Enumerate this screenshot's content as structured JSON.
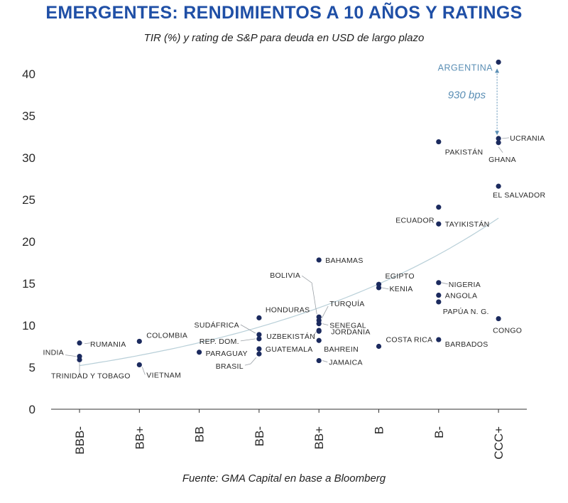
{
  "colors": {
    "title": "#1f4fa6",
    "marker": "#1b2a5e",
    "axis": "#333333",
    "trend": "#b8cfd8",
    "highlight": "#5b8fb5",
    "text": "#2a2a2a"
  },
  "chart_data": {
    "type": "scatter",
    "title": "EMERGENTES: RENDIMIENTOS A 10 AÑOS Y RATINGS",
    "subtitle": "TIR (%) y rating de S&P para deuda en USD de largo plazo",
    "source": "Fuente: GMA Capital en base a Bloomberg",
    "xlabel": "",
    "ylabel": "",
    "categories": [
      "BBB-",
      "BB+",
      "BB",
      "BB-",
      "BB+",
      "B",
      "B-",
      "CCC+"
    ],
    "ylim": [
      0,
      42
    ],
    "yticks": [
      0,
      5,
      10,
      15,
      20,
      25,
      30,
      35,
      40
    ],
    "points": [
      {
        "country": "RUMANIA",
        "category_index": 0,
        "y": 7.9
      },
      {
        "country": "INDIA",
        "category_index": 0,
        "y": 6.3
      },
      {
        "country": "TRINIDAD Y TOBAGO",
        "category_index": 0,
        "y": 5.9
      },
      {
        "country": "COLOMBIA",
        "category_index": 1,
        "y": 8.1
      },
      {
        "country": "VIETNAM",
        "category_index": 1,
        "y": 5.3
      },
      {
        "country": "PARAGUAY",
        "category_index": 2,
        "y": 6.8
      },
      {
        "country": "HONDURAS",
        "category_index": 3,
        "y": 10.9
      },
      {
        "country": "SUDÁFRICA",
        "category_index": 3,
        "y": 8.9
      },
      {
        "country": "REP. DOM.",
        "category_index": 3,
        "y": 8.4
      },
      {
        "country": "GUATEMALA",
        "category_index": 3,
        "y": 7.2
      },
      {
        "country": "BRASIL",
        "category_index": 3,
        "y": 6.6
      },
      {
        "country": "BAHAMAS",
        "category_index": 4,
        "y": 17.8
      },
      {
        "country": "BOLIVIA",
        "category_index": 4,
        "y": 11.0
      },
      {
        "country": "TURQUÍA",
        "category_index": 4,
        "y": 10.6
      },
      {
        "country": "SENEGAL",
        "category_index": 4,
        "y": 10.2
      },
      {
        "country": "UZBEKISTÁN",
        "category_index": 4,
        "y": 9.4
      },
      {
        "country": "JORDANIA",
        "category_index": 4,
        "y": 9.3
      },
      {
        "country": "BAHREIN",
        "category_index": 4,
        "y": 8.2
      },
      {
        "country": "JAMAICA",
        "category_index": 4,
        "y": 5.8
      },
      {
        "country": "EGIPTO",
        "category_index": 5,
        "y": 14.9
      },
      {
        "country": "KENIA",
        "category_index": 5,
        "y": 14.5
      },
      {
        "country": "COSTA RICA",
        "category_index": 5,
        "y": 7.5
      },
      {
        "country": "PAKISTÁN",
        "category_index": 6,
        "y": 31.9
      },
      {
        "country": "ECUADOR",
        "category_index": 6,
        "y": 24.1
      },
      {
        "country": "TAYIKISTÁN",
        "category_index": 6,
        "y": 22.1
      },
      {
        "country": "NIGERIA",
        "category_index": 6,
        "y": 15.1
      },
      {
        "country": "ANGOLA",
        "category_index": 6,
        "y": 13.6
      },
      {
        "country": "PAPÚA N. G.",
        "category_index": 6,
        "y": 12.8
      },
      {
        "country": "BARBADOS",
        "category_index": 6,
        "y": 8.3
      },
      {
        "country": "ARGENTINA",
        "category_index": 7,
        "y": 41.4
      },
      {
        "country": "UCRANIA",
        "category_index": 7,
        "y": 32.3
      },
      {
        "country": "GHANA",
        "category_index": 7,
        "y": 31.8
      },
      {
        "country": "EL SALVADOR",
        "category_index": 7,
        "y": 26.6
      },
      {
        "country": "CONGO",
        "category_index": 7,
        "y": 10.8
      }
    ],
    "trendline": {
      "type": "exponential",
      "x_start": 0,
      "x_end": 7,
      "y_start": 5.2,
      "y_end": 22.8
    },
    "annotation": {
      "text": "930 bps",
      "from_y": 41.4,
      "to_y": 32.1,
      "category_index": 7
    },
    "highlight_label": "ARGENTINA"
  }
}
